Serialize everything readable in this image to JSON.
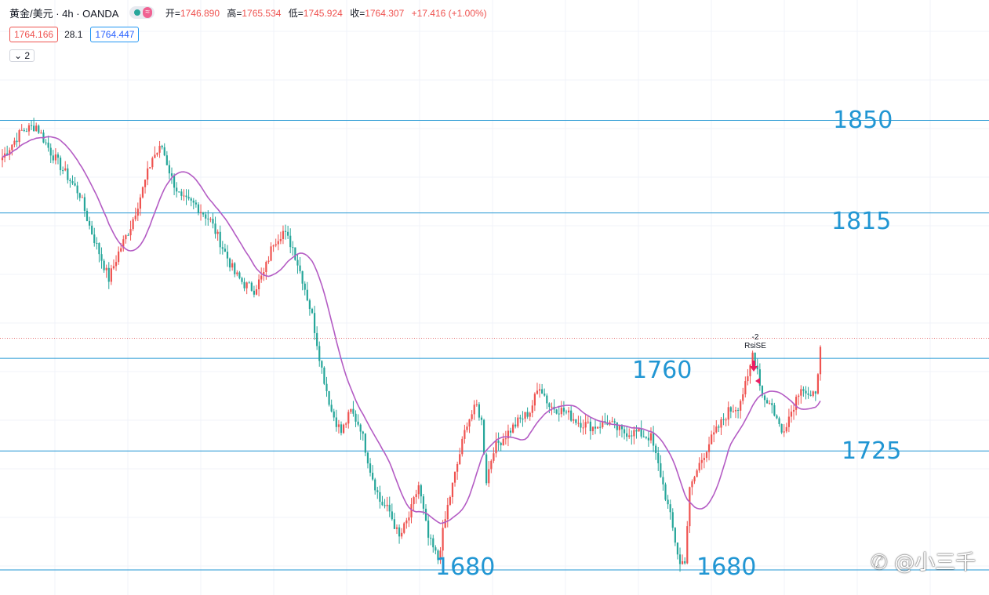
{
  "legend": {
    "symbol": "黄金/美元 · 4h · OANDA",
    "toggle_icon": "≈",
    "open_label": "开=",
    "open": "1746.890",
    "high_label": "高=",
    "high": "1765.534",
    "low_label": "低=",
    "low": "1745.924",
    "close_label": "收=",
    "close": "1764.307",
    "change": "+17.416 (+1.00%)"
  },
  "quote": {
    "bid": "1764.166",
    "spread": "28.1",
    "ask": "1764.447"
  },
  "indicator_count": "2",
  "annotation": {
    "value": "-2",
    "label": "RsiSE"
  },
  "watermark": "@小三千",
  "colors": {
    "up": "#ef5350",
    "down": "#26a69a",
    "ma": "#b45cc4",
    "level": "#2196d3"
  },
  "chart_data": {
    "type": "candlestick",
    "title": "",
    "xlabel": "",
    "ylabel": "",
    "ylim": [
      1672,
      1868
    ],
    "levels": [
      {
        "value": 1850,
        "label": "1850"
      },
      {
        "value": 1815,
        "label": "1815"
      },
      {
        "value": 1760,
        "label": "1760"
      },
      {
        "value": 1725,
        "label": "1725"
      },
      {
        "value": 1680,
        "label": "1680"
      },
      {
        "value": 1680,
        "label": "1680"
      }
    ],
    "last_price": 1764.3,
    "anchors": [
      [
        0,
        1836
      ],
      [
        8,
        1846
      ],
      [
        14,
        1848
      ],
      [
        20,
        1838
      ],
      [
        26,
        1830
      ],
      [
        32,
        1822
      ],
      [
        36,
        1810
      ],
      [
        40,
        1800
      ],
      [
        44,
        1790
      ],
      [
        48,
        1800
      ],
      [
        53,
        1810
      ],
      [
        58,
        1824
      ],
      [
        62,
        1836
      ],
      [
        66,
        1840
      ],
      [
        70,
        1828
      ],
      [
        74,
        1820
      ],
      [
        80,
        1818
      ],
      [
        86,
        1812
      ],
      [
        92,
        1800
      ],
      [
        96,
        1792
      ],
      [
        100,
        1788
      ],
      [
        104,
        1786
      ],
      [
        108,
        1792
      ],
      [
        112,
        1804
      ],
      [
        116,
        1808
      ],
      [
        120,
        1802
      ],
      [
        124,
        1790
      ],
      [
        128,
        1776
      ],
      [
        132,
        1756
      ],
      [
        136,
        1740
      ],
      [
        140,
        1732
      ],
      [
        144,
        1740
      ],
      [
        148,
        1734
      ],
      [
        152,
        1718
      ],
      [
        156,
        1706
      ],
      [
        160,
        1702
      ],
      [
        164,
        1692
      ],
      [
        168,
        1700
      ],
      [
        172,
        1712
      ],
      [
        176,
        1692
      ],
      [
        180,
        1684
      ],
      [
        184,
        1704
      ],
      [
        188,
        1720
      ],
      [
        192,
        1736
      ],
      [
        196,
        1742
      ],
      [
        198,
        1736
      ],
      [
        200,
        1714
      ],
      [
        203,
        1726
      ],
      [
        208,
        1731
      ],
      [
        213,
        1736
      ],
      [
        218,
        1740
      ],
      [
        222,
        1750
      ],
      [
        226,
        1742
      ],
      [
        232,
        1740
      ],
      [
        238,
        1736
      ],
      [
        244,
        1734
      ],
      [
        250,
        1736
      ],
      [
        256,
        1732
      ],
      [
        262,
        1732
      ],
      [
        268,
        1730
      ],
      [
        272,
        1716
      ],
      [
        276,
        1700
      ],
      [
        280,
        1682
      ],
      [
        282,
        1684
      ],
      [
        284,
        1710
      ],
      [
        288,
        1720
      ],
      [
        292,
        1728
      ],
      [
        296,
        1734
      ],
      [
        300,
        1740
      ],
      [
        304,
        1742
      ],
      [
        308,
        1752
      ],
      [
        310,
        1762
      ],
      [
        312,
        1756
      ],
      [
        314,
        1746
      ],
      [
        318,
        1742
      ],
      [
        322,
        1732
      ],
      [
        326,
        1740
      ],
      [
        330,
        1750
      ],
      [
        334,
        1744
      ],
      [
        336,
        1748
      ],
      [
        338,
        1764
      ]
    ],
    "candle_count": 339,
    "ma_period": 18
  }
}
